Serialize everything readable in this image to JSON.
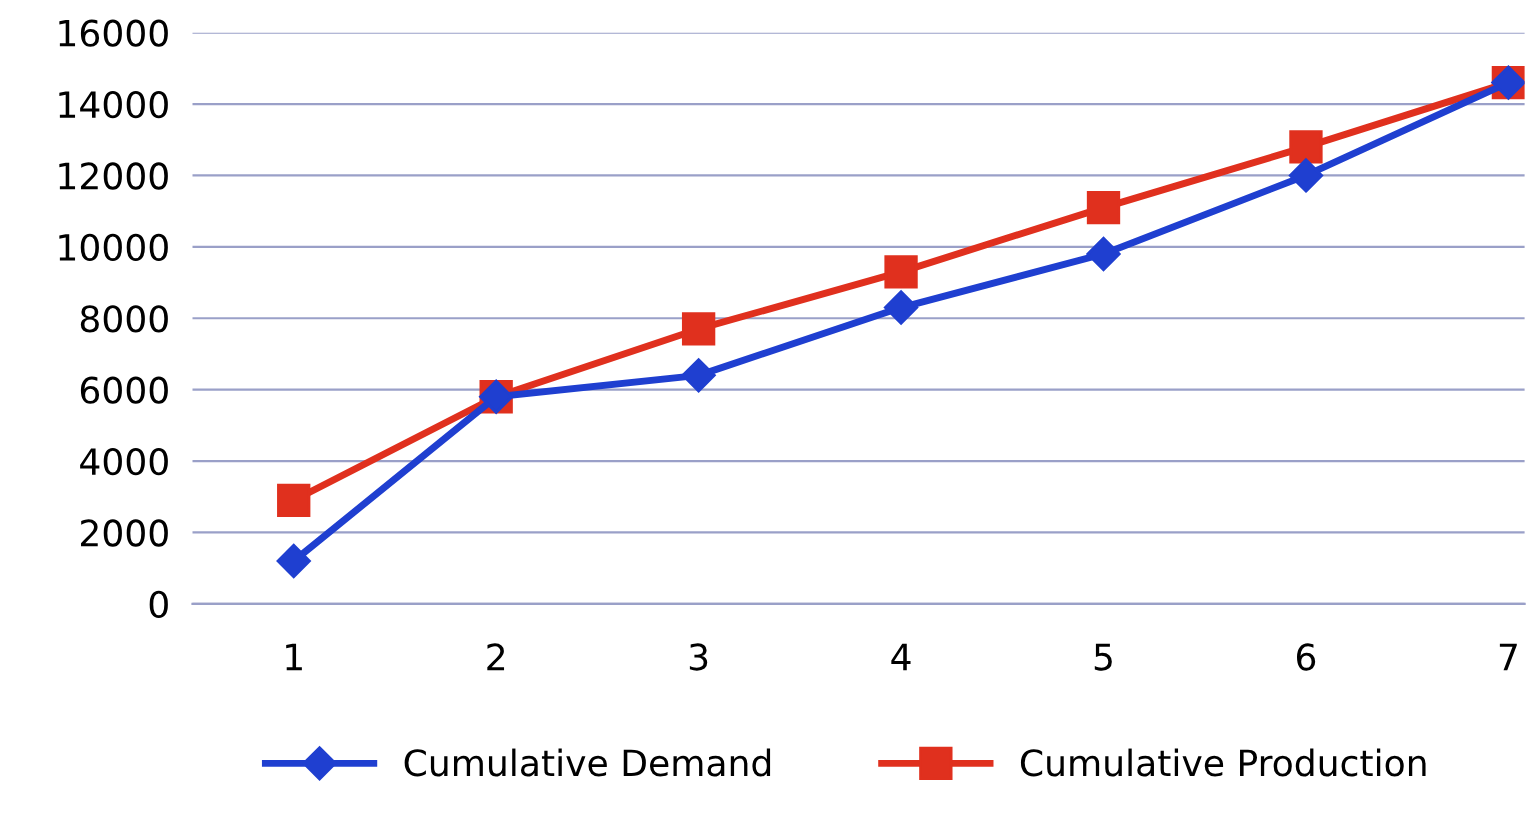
{
  "chart_data": {
    "type": "line",
    "categories": [
      "1",
      "2",
      "3",
      "4",
      "5",
      "6",
      "7"
    ],
    "series": [
      {
        "name": "Cumulative Demand",
        "color": "#1f3fd0",
        "marker": "diamond",
        "values": [
          1200,
          5800,
          6400,
          8300,
          9800,
          12000,
          14600
        ]
      },
      {
        "name": "Cumulative Production",
        "color": "#e0301e",
        "marker": "square",
        "values": [
          2900,
          5800,
          7700,
          9300,
          11100,
          12800,
          14600
        ]
      }
    ],
    "ylim": [
      0,
      16000
    ],
    "yticks": [
      0,
      2000,
      4000,
      6000,
      8000,
      10000,
      12000,
      14000,
      16000
    ],
    "grid": "y",
    "legend": "bottom"
  }
}
